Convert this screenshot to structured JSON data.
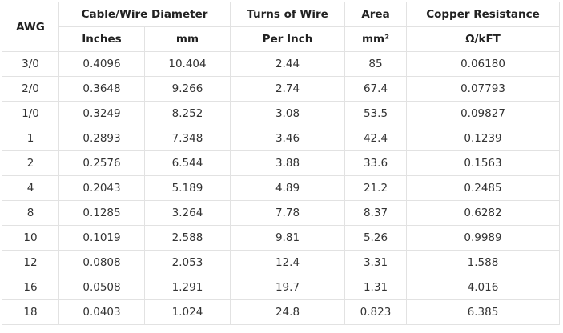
{
  "table": {
    "header": {
      "awg": "AWG",
      "diameter": "Cable/Wire Diameter",
      "inches": "Inches",
      "mm": "mm",
      "turns": "Turns of Wire",
      "per_inch": "Per Inch",
      "area": "Area",
      "area_unit": "mm²",
      "resistance": "Copper Resistance",
      "resistance_unit": "Ω/kFT"
    },
    "rows": [
      [
        "3/0",
        "0.4096",
        "10.404",
        "2.44",
        "85",
        "0.06180"
      ],
      [
        "2/0",
        "0.3648",
        "9.266",
        "2.74",
        "67.4",
        "0.07793"
      ],
      [
        "1/0",
        "0.3249",
        "8.252",
        "3.08",
        "53.5",
        "0.09827"
      ],
      [
        "1",
        "0.2893",
        "7.348",
        "3.46",
        "42.4",
        "0.1239"
      ],
      [
        "2",
        "0.2576",
        "6.544",
        "3.88",
        "33.6",
        "0.1563"
      ],
      [
        "4",
        "0.2043",
        "5.189",
        "4.89",
        "21.2",
        "0.2485"
      ],
      [
        "8",
        "0.1285",
        "3.264",
        "7.78",
        "8.37",
        "0.6282"
      ],
      [
        "10",
        "0.1019",
        "2.588",
        "9.81",
        "5.26",
        "0.9989"
      ],
      [
        "12",
        "0.0808",
        "2.053",
        "12.4",
        "3.31",
        "1.588"
      ],
      [
        "16",
        "0.0508",
        "1.291",
        "19.7",
        "1.31",
        "4.016"
      ],
      [
        "18",
        "0.0403",
        "1.024",
        "24.8",
        "0.823",
        "6.385"
      ]
    ]
  }
}
